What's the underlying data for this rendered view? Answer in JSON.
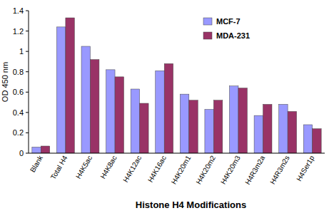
{
  "chart_data": {
    "type": "bar",
    "x_label": "Histone H4 Modifications",
    "y_label": "OD 450 nm",
    "categories": [
      "Blank",
      "Total H4",
      "H4K5ac",
      "H4K8ac",
      "H4K12ac",
      "H4K16ac",
      "H4K20m1",
      "H4K20m2",
      "H4K20m3",
      "H4R3m2a",
      "H4R3m2s",
      "H4Ser1p"
    ],
    "series": [
      {
        "name": "MCF-7",
        "color": "#9999ff",
        "values": [
          0.06,
          1.24,
          1.05,
          0.82,
          0.63,
          0.81,
          0.58,
          0.43,
          0.66,
          0.37,
          0.48,
          0.28
        ]
      },
      {
        "name": "MDA-231",
        "color": "#993366",
        "values": [
          0.07,
          1.33,
          0.92,
          0.75,
          0.49,
          0.88,
          0.52,
          0.52,
          0.64,
          0.48,
          0.41,
          0.24
        ]
      }
    ],
    "ylim": [
      0,
      1.4
    ],
    "yticks": [
      0,
      0.2,
      0.4,
      0.6,
      0.8,
      1,
      1.2,
      1.4
    ],
    "grid": false,
    "legend": "upper right"
  }
}
